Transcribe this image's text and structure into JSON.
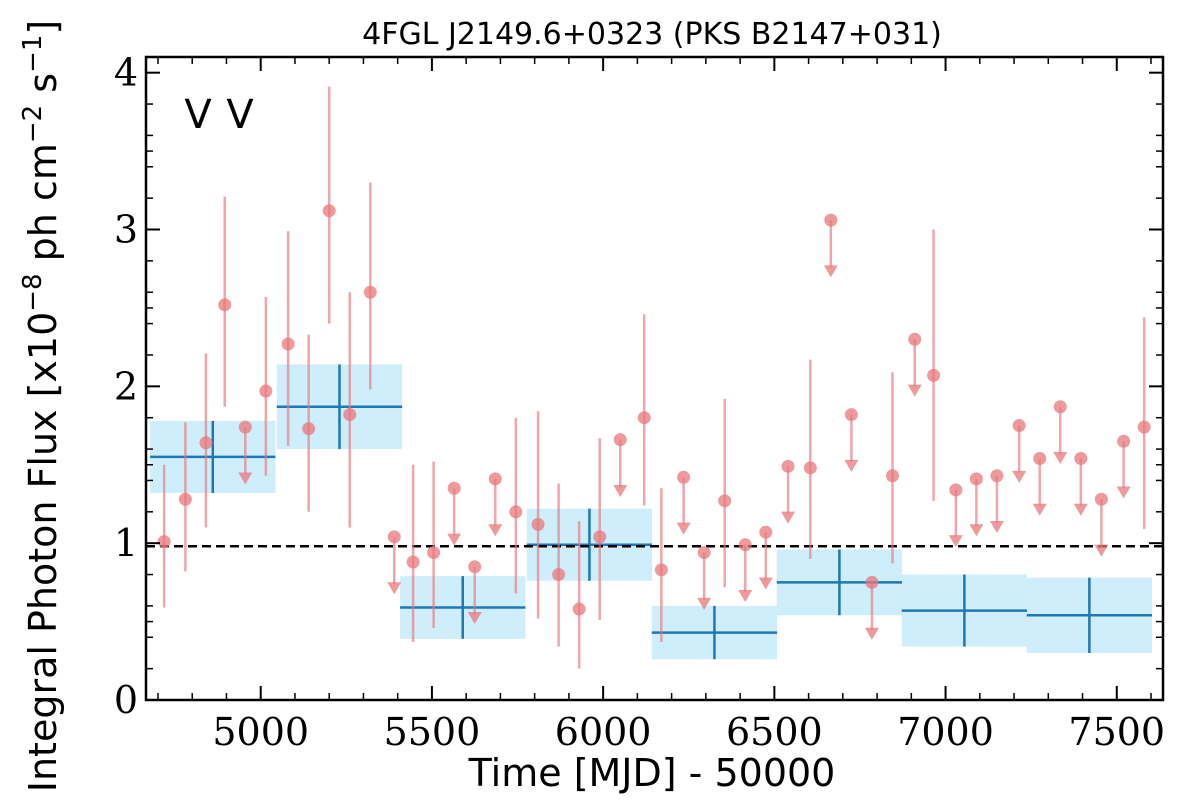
{
  "chart_data": {
    "type": "scatter",
    "title": "4FGL J2149.6+0323 (PKS B2147+031)",
    "xlabel": "Time [MJD] - 50000",
    "ylabel": "Integral Photon Flux [x10$^{-8}$ ph cm$^{-2}$ s$^{-1}$]",
    "ylabel_parts": {
      "prefix": "Integral Photon Flux [x10",
      "exp1": "−8",
      "mid": " ph cm",
      "exp2": "−2",
      "mid2": " s",
      "exp3": "−1",
      "suffix": "]"
    },
    "xlim": [
      4665,
      7635
    ],
    "ylim": [
      0,
      4.1
    ],
    "x_ticks": [
      5000,
      5500,
      6000,
      6500,
      7000,
      7500
    ],
    "x_tick_labels": [
      "5000",
      "5500",
      "6000",
      "6500",
      "7000",
      "7500"
    ],
    "y_ticks": [
      0,
      1,
      2,
      3,
      4
    ],
    "y_tick_labels": [
      "0",
      "1",
      "2",
      "3",
      "4"
    ],
    "grid": false,
    "legend_markers": [
      {
        "label": "V",
        "color": "#1f77b4"
      },
      {
        "label": "V",
        "color": "#d62728"
      }
    ],
    "reference_line": {
      "y": 0.98,
      "style": "dashed",
      "color": "#000000"
    },
    "colors": {
      "yearly_band": "#cfeefc",
      "yearly_line": "#1f77b4",
      "monthly": "#e8777a"
    },
    "series": [
      {
        "kind": "yearly-bins",
        "points": [
          {
            "x": 4860,
            "xerr": 183,
            "y": 1.55,
            "yerr": [
              0.23,
              0.23
            ]
          },
          {
            "x": 5230,
            "xerr": 183,
            "y": 1.87,
            "yerr": [
              0.27,
              0.27
            ]
          },
          {
            "x": 5590,
            "xerr": 183,
            "y": 0.59,
            "yerr": [
              0.2,
              0.2
            ]
          },
          {
            "x": 5960,
            "xerr": 183,
            "y": 0.99,
            "yerr": [
              0.23,
              0.23
            ]
          },
          {
            "x": 6325,
            "xerr": 183,
            "y": 0.43,
            "yerr": [
              0.17,
              0.17
            ]
          },
          {
            "x": 6690,
            "xerr": 183,
            "y": 0.75,
            "yerr": [
              0.21,
              0.21
            ]
          },
          {
            "x": 7055,
            "xerr": 183,
            "y": 0.57,
            "yerr": [
              0.23,
              0.23
            ]
          },
          {
            "x": 7420,
            "xerr": 183,
            "y": 0.54,
            "yerr": [
              0.24,
              0.24
            ]
          }
        ]
      },
      {
        "kind": "monthly-detections",
        "points": [
          {
            "x": 4718,
            "y": 1.01,
            "lo": 0.59,
            "hi": 1.5
          },
          {
            "x": 4780,
            "y": 1.28,
            "lo": 0.82,
            "hi": 1.77
          },
          {
            "x": 4840,
            "y": 1.64,
            "lo": 1.1,
            "hi": 2.21
          },
          {
            "x": 4895,
            "y": 2.52,
            "lo": 1.87,
            "hi": 3.21
          },
          {
            "x": 5015,
            "y": 1.97,
            "lo": 1.43,
            "hi": 2.57
          },
          {
            "x": 5080,
            "y": 2.27,
            "lo": 1.62,
            "hi": 2.99
          },
          {
            "x": 5140,
            "y": 1.73,
            "lo": 1.2,
            "hi": 2.33
          },
          {
            "x": 5200,
            "y": 3.12,
            "lo": 2.4,
            "hi": 3.91
          },
          {
            "x": 5260,
            "y": 1.82,
            "lo": 1.1,
            "hi": 2.6
          },
          {
            "x": 5320,
            "y": 2.6,
            "lo": 1.98,
            "hi": 3.3
          },
          {
            "x": 5445,
            "y": 0.88,
            "lo": 0.37,
            "hi": 1.5
          },
          {
            "x": 5505,
            "y": 0.94,
            "lo": 0.46,
            "hi": 1.52
          },
          {
            "x": 5745,
            "y": 1.2,
            "lo": 0.68,
            "hi": 1.8
          },
          {
            "x": 5810,
            "y": 1.12,
            "lo": 0.52,
            "hi": 1.84
          },
          {
            "x": 5870,
            "y": 0.8,
            "lo": 0.34,
            "hi": 1.38
          },
          {
            "x": 5930,
            "y": 0.58,
            "lo": 0.2,
            "hi": 1.14
          },
          {
            "x": 5990,
            "y": 1.04,
            "lo": 0.51,
            "hi": 1.67
          },
          {
            "x": 6120,
            "y": 1.8,
            "lo": 1.24,
            "hi": 2.46
          },
          {
            "x": 6170,
            "y": 0.83,
            "lo": 0.37,
            "hi": 1.35
          },
          {
            "x": 6355,
            "y": 1.27,
            "lo": 0.72,
            "hi": 1.92
          },
          {
            "x": 6605,
            "y": 1.48,
            "lo": 0.9,
            "hi": 2.17
          },
          {
            "x": 6845,
            "y": 1.43,
            "lo": 0.87,
            "hi": 2.09
          },
          {
            "x": 6965,
            "y": 2.07,
            "lo": 1.27,
            "hi": 3.0
          },
          {
            "x": 7580,
            "y": 1.74,
            "lo": 1.09,
            "hi": 2.44
          }
        ]
      },
      {
        "kind": "monthly-upper-limits",
        "points": [
          {
            "x": 4955,
            "y": 1.74,
            "to": 1.4
          },
          {
            "x": 5390,
            "y": 1.04,
            "to": 0.7
          },
          {
            "x": 5565,
            "y": 1.35,
            "to": 1.01
          },
          {
            "x": 5625,
            "y": 0.85,
            "to": 0.51
          },
          {
            "x": 5685,
            "y": 1.41,
            "to": 1.07
          },
          {
            "x": 6050,
            "y": 1.66,
            "to": 1.32
          },
          {
            "x": 6235,
            "y": 1.42,
            "to": 1.08
          },
          {
            "x": 6295,
            "y": 0.94,
            "to": 0.6
          },
          {
            "x": 6415,
            "y": 0.99,
            "to": 0.65
          },
          {
            "x": 6475,
            "y": 1.07,
            "to": 0.73
          },
          {
            "x": 6540,
            "y": 1.49,
            "to": 1.15
          },
          {
            "x": 6665,
            "y": 3.06,
            "to": 2.72
          },
          {
            "x": 6725,
            "y": 1.82,
            "to": 1.48
          },
          {
            "x": 6785,
            "y": 0.75,
            "to": 0.41
          },
          {
            "x": 6910,
            "y": 2.3,
            "to": 1.96
          },
          {
            "x": 7030,
            "y": 1.34,
            "to": 1.0
          },
          {
            "x": 7090,
            "y": 1.41,
            "to": 1.07
          },
          {
            "x": 7150,
            "y": 1.43,
            "to": 1.09
          },
          {
            "x": 7215,
            "y": 1.75,
            "to": 1.41
          },
          {
            "x": 7275,
            "y": 1.54,
            "to": 1.2
          },
          {
            "x": 7335,
            "y": 1.87,
            "to": 1.53
          },
          {
            "x": 7395,
            "y": 1.54,
            "to": 1.2
          },
          {
            "x": 7455,
            "y": 1.28,
            "to": 0.94
          },
          {
            "x": 7520,
            "y": 1.65,
            "to": 1.31
          }
        ]
      }
    ]
  }
}
